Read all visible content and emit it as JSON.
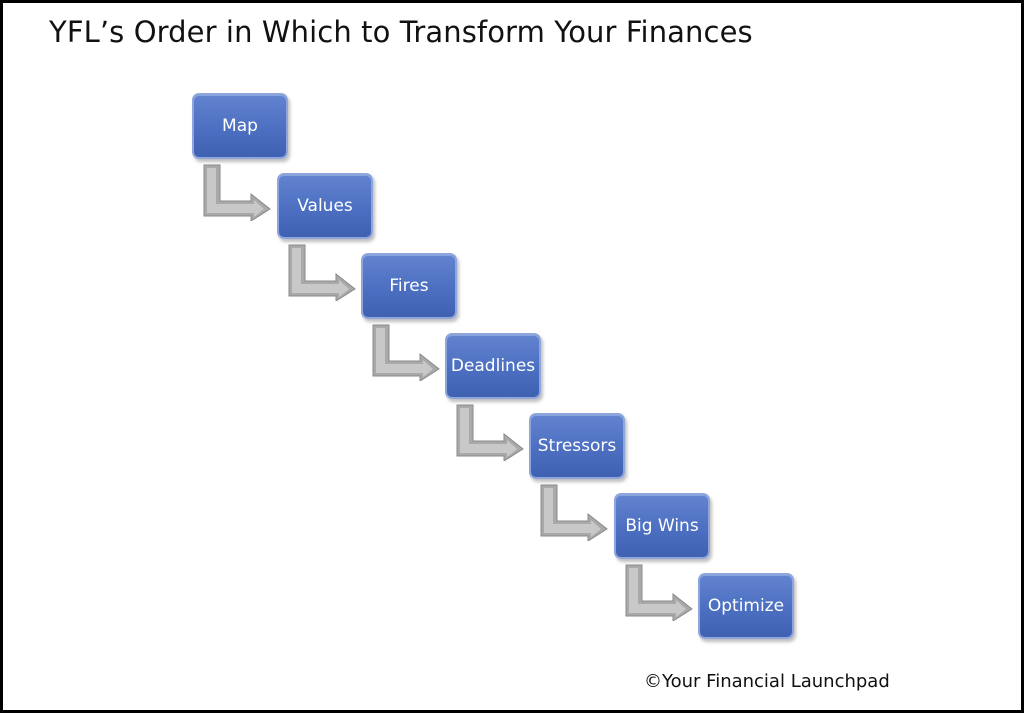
{
  "title": "YFL’s Order in Which to Transform Your Finances",
  "steps": [
    {
      "label": "Map"
    },
    {
      "label": "Values"
    },
    {
      "label": "Fires"
    },
    {
      "label": "Deadlines"
    },
    {
      "label": "Stressors"
    },
    {
      "label": "Big Wins"
    },
    {
      "label": "Optimize"
    }
  ],
  "copyright": "©Your Financial Launchpad",
  "colors": {
    "box_fill": "#4c6fc1",
    "box_border": "#8fa6dc",
    "arrow": "#a6a6a6",
    "text": "#ffffff",
    "frame": "#000000"
  },
  "icons": {
    "connector": "elbow-arrow-icon"
  }
}
